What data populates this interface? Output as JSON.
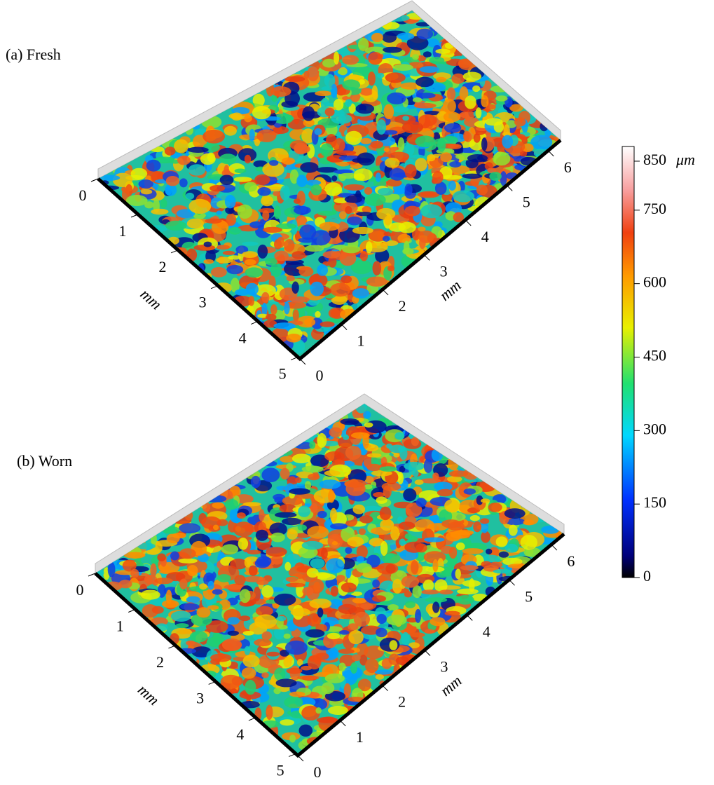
{
  "panels": [
    {
      "title": "(a) Fresh",
      "x_label": "mm",
      "y_label": "mm",
      "xlim": [
        0,
        6.3
      ],
      "xticks": [
        0,
        1,
        2,
        3,
        4,
        5,
        6
      ],
      "ylim": [
        0,
        5.05
      ],
      "yticks": [
        0,
        1,
        2,
        3,
        4,
        5
      ]
    },
    {
      "title": "(b) Worn",
      "x_label": "mm",
      "y_label": "mm",
      "xlim": [
        0,
        6.3
      ],
      "xticks": [
        0,
        1,
        2,
        3,
        4,
        5,
        6
      ],
      "ylim": [
        0,
        5.05
      ],
      "yticks": [
        0,
        1,
        2,
        3,
        4,
        5
      ]
    }
  ],
  "colorbar": {
    "lim": [
      0,
      880
    ],
    "ticks": [
      0,
      150,
      300,
      450,
      600,
      750,
      850
    ],
    "unit": "μm"
  }
}
